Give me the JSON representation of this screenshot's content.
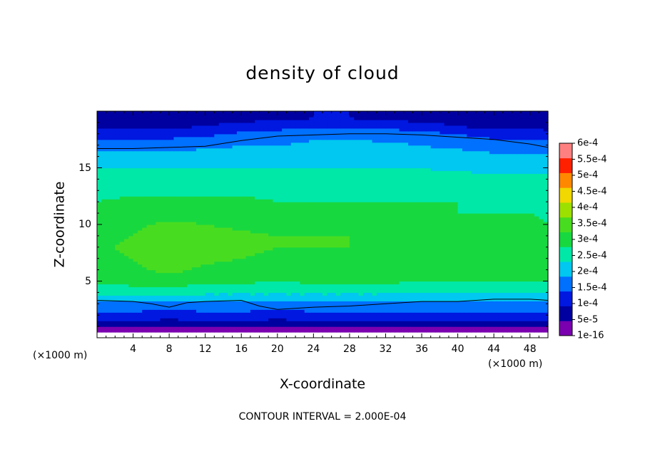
{
  "chart_data": {
    "type": "heatmap",
    "title": "density of cloud",
    "xlabel": "X-coordinate",
    "ylabel": "Z-coordinate",
    "x_unit_left": "(×1000 m)",
    "x_unit_right": "(×1000 m)",
    "footnote": "CONTOUR INTERVAL = 2.000E-04",
    "xlim": [
      0,
      50
    ],
    "ylim": [
      0,
      20
    ],
    "x_ticks": [
      4,
      8,
      12,
      16,
      20,
      24,
      28,
      32,
      36,
      40,
      44,
      48
    ],
    "x_tick_labels": [
      "4",
      "8",
      "12",
      "16",
      "20",
      "24",
      "28",
      "32",
      "36",
      "40",
      "44",
      "48"
    ],
    "y_ticks": [
      5,
      10,
      15
    ],
    "y_tick_labels": [
      "5",
      "10",
      "15"
    ],
    "colorbar": {
      "levels": [
        1e-16,
        5e-05,
        0.0001,
        0.00015,
        0.0002,
        0.00025,
        0.0003,
        0.00035,
        0.0004,
        0.00045,
        0.0005,
        0.00055,
        0.0006
      ],
      "labels": [
        "1e-16",
        "5e-5",
        "1e-4",
        "1.5e-4",
        "2e-4",
        "2.5e-4",
        "3e-4",
        "3.5e-4",
        "4e-4",
        "4.5e-4",
        "5e-4",
        "5.5e-4",
        "6e-4"
      ],
      "colors": [
        "#7a00b0",
        "#0000a0",
        "#0018e0",
        "#0070ff",
        "#00c8f0",
        "#00e8a8",
        "#18d840",
        "#48dc20",
        "#9ce000",
        "#f0d800",
        "#ff8800",
        "#ff2000",
        "#ff8080"
      ]
    },
    "z_rows": [
      0.5,
      1.0,
      1.5,
      2.0,
      2.5,
      3.0,
      3.5,
      4.0,
      5.0,
      6.0,
      7.0,
      8.0,
      9.0,
      10.0,
      11.0,
      12.0,
      13.0,
      14.0,
      15.0,
      16.0,
      17.0,
      18.0,
      18.7,
      19.4
    ],
    "x_cols": [
      0,
      4,
      8,
      12,
      16,
      20,
      24,
      28,
      32,
      36,
      40,
      44,
      48,
      50
    ],
    "values": [
      [
        1e-05,
        1e-05,
        1e-05,
        1e-05,
        1e-05,
        1e-05,
        1e-05,
        1e-05,
        1e-05,
        1e-05,
        1e-05,
        1e-05,
        1e-05,
        1e-05
      ],
      [
        6e-05,
        6e-05,
        5e-05,
        6e-05,
        6e-05,
        5e-05,
        6e-05,
        6e-05,
        6e-05,
        6e-05,
        6e-05,
        6e-05,
        6e-05,
        6e-05
      ],
      [
        0.0001,
        0.0001,
        9e-05,
        0.0001,
        0.0001,
        9e-05,
        0.0001,
        0.0001,
        0.0001,
        0.0001,
        0.0001,
        0.0001,
        0.0001,
        0.0001
      ],
      [
        0.00013,
        0.00013,
        0.00012,
        0.00013,
        0.00013,
        0.00012,
        0.00013,
        0.00013,
        0.00013,
        0.00013,
        0.00013,
        0.00013,
        0.00013,
        0.00013
      ],
      [
        0.00016,
        0.00016,
        0.00015,
        0.00016,
        0.00016,
        0.00015,
        0.00016,
        0.00016,
        0.00016,
        0.00016,
        0.00016,
        0.00016,
        0.00016,
        0.00016
      ],
      [
        0.00019,
        0.00019,
        0.00018,
        0.00019,
        0.00019,
        0.00019,
        0.00019,
        0.00019,
        0.00019,
        0.00019,
        0.00019,
        0.00019,
        0.00019,
        0.00019
      ],
      [
        0.00022,
        0.00022,
        0.00021,
        0.00022,
        0.00022,
        0.00022,
        0.00022,
        0.00022,
        0.00022,
        0.00021,
        0.00021,
        0.00021,
        0.00021,
        0.00021
      ],
      [
        0.00026,
        0.00027,
        0.00027,
        0.00026,
        0.00026,
        0.00026,
        0.00026,
        0.00026,
        0.00026,
        0.00025,
        0.00025,
        0.00025,
        0.00025,
        0.00025
      ],
      [
        0.00031,
        0.00032,
        0.00033,
        0.00031,
        0.00031,
        0.0003,
        0.00031,
        0.00031,
        0.00031,
        0.0003,
        0.0003,
        0.0003,
        0.0003,
        0.0003
      ],
      [
        0.00033,
        0.00034,
        0.00036,
        0.00034,
        0.00033,
        0.00032,
        0.00033,
        0.00033,
        0.00032,
        0.00031,
        0.00031,
        0.00031,
        0.00031,
        0.0003
      ],
      [
        0.00034,
        0.00035,
        0.00039,
        0.00036,
        0.00035,
        0.00034,
        0.00034,
        0.00034,
        0.00033,
        0.00032,
        0.00032,
        0.00033,
        0.00032,
        0.00031
      ],
      [
        0.00034,
        0.00036,
        0.0004,
        0.00038,
        0.00036,
        0.00035,
        0.00035,
        0.00035,
        0.00034,
        0.00032,
        0.00032,
        0.00033,
        0.00032,
        0.00031
      ],
      [
        0.00033,
        0.00035,
        0.00038,
        0.00037,
        0.00036,
        0.00035,
        0.00035,
        0.00035,
        0.00034,
        0.00032,
        0.00032,
        0.00032,
        0.00031,
        0.00031
      ],
      [
        0.00032,
        0.00034,
        0.00036,
        0.00035,
        0.00034,
        0.00033,
        0.00033,
        0.00033,
        0.00032,
        0.00031,
        0.00031,
        0.00031,
        0.00031,
        0.0003
      ],
      [
        0.00031,
        0.00032,
        0.00033,
        0.00033,
        0.00032,
        0.00031,
        0.00031,
        0.00031,
        0.00031,
        0.0003,
        0.0003,
        0.0003,
        0.0003,
        0.00029
      ],
      [
        0.0003,
        0.00031,
        0.00031,
        0.00031,
        0.00031,
        0.0003,
        0.0003,
        0.0003,
        0.0003,
        0.0003,
        0.0003,
        0.00029,
        0.00029,
        0.00029
      ],
      [
        0.00029,
        0.00029,
        0.00029,
        0.00029,
        0.00029,
        0.00029,
        0.00029,
        0.00029,
        0.00029,
        0.00029,
        0.00029,
        0.00028,
        0.00028,
        0.00028
      ],
      [
        0.00027,
        0.00027,
        0.00027,
        0.00027,
        0.00027,
        0.00027,
        0.00027,
        0.00027,
        0.00027,
        0.00027,
        0.00027,
        0.00026,
        0.00026,
        0.00026
      ],
      [
        0.00025,
        0.00025,
        0.00025,
        0.00025,
        0.00025,
        0.00025,
        0.00025,
        0.00025,
        0.00025,
        0.00025,
        0.00024,
        0.00024,
        0.00024,
        0.00024
      ],
      [
        0.00022,
        0.00022,
        0.00022,
        0.00022,
        0.00022,
        0.00022,
        0.00023,
        0.00023,
        0.00023,
        0.00022,
        0.00022,
        0.00021,
        0.00021,
        0.00021
      ],
      [
        0.00018,
        0.00018,
        0.00018,
        0.00019,
        0.0002,
        0.0002,
        0.00021,
        0.00021,
        0.00021,
        0.0002,
        0.00019,
        0.00018,
        0.00018,
        0.00017
      ],
      [
        0.00013,
        0.00013,
        0.00013,
        0.00014,
        0.00016,
        0.00017,
        0.00019,
        0.00019,
        0.00018,
        0.00017,
        0.00015,
        0.00013,
        0.00013,
        0.00012
      ],
      [
        9e-05,
        9e-05,
        9e-05,
        0.0001,
        0.00012,
        0.00013,
        0.00014,
        0.00014,
        0.00013,
        0.00012,
        0.0001,
        8e-05,
        8e-05,
        8e-05
      ],
      [
        6e-05,
        6e-05,
        6e-05,
        7e-05,
        8e-05,
        9e-05,
        0.0001,
        0.0001,
        9e-05,
        8e-05,
        7e-05,
        5e-05,
        5e-05,
        5e-05
      ]
    ],
    "contour_levels": [
      0.0002
    ],
    "contour_upper_z": [
      [
        0,
        16.7
      ],
      [
        4,
        16.7
      ],
      [
        8,
        16.8
      ],
      [
        12,
        16.9
      ],
      [
        16,
        17.4
      ],
      [
        20,
        17.8
      ],
      [
        24,
        17.9
      ],
      [
        28,
        18.0
      ],
      [
        32,
        18.0
      ],
      [
        36,
        17.9
      ],
      [
        40,
        17.7
      ],
      [
        44,
        17.5
      ],
      [
        48,
        17.1
      ],
      [
        50,
        16.8
      ]
    ],
    "contour_lower_z": [
      [
        0,
        3.3
      ],
      [
        4,
        3.2
      ],
      [
        6,
        3.0
      ],
      [
        8,
        2.7
      ],
      [
        10,
        3.1
      ],
      [
        12,
        3.2
      ],
      [
        16,
        3.3
      ],
      [
        18,
        2.8
      ],
      [
        20,
        2.5
      ],
      [
        24,
        2.7
      ],
      [
        28,
        2.8
      ],
      [
        32,
        3.0
      ],
      [
        36,
        3.2
      ],
      [
        40,
        3.2
      ],
      [
        44,
        3.4
      ],
      [
        48,
        3.4
      ],
      [
        50,
        3.3
      ]
    ]
  }
}
